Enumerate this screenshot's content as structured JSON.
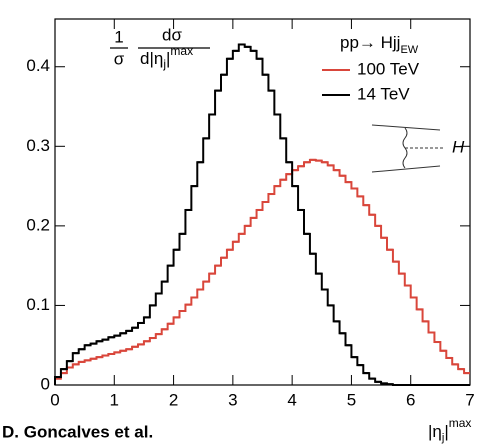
{
  "chart_data": {
    "type": "histogram",
    "author": "D. Goncalves et al.",
    "ylabel_parts": [
      "1",
      "σ",
      "dσ",
      "d|η",
      "j",
      "|",
      "max"
    ],
    "xlabel_parts": [
      "|η",
      "j",
      "|",
      "max"
    ],
    "legend_title_parts": [
      "pp→ Hjj",
      "EW"
    ],
    "diagram_label": "H",
    "xlim": [
      0,
      7
    ],
    "ylim": [
      0,
      0.46
    ],
    "xticks": [
      0,
      1,
      2,
      3,
      4,
      5,
      6,
      7
    ],
    "yticks": [
      0,
      0.1,
      0.2,
      0.3,
      0.4
    ],
    "grid": false,
    "bins": [
      0,
      0.1,
      0.2,
      0.3,
      0.4,
      0.5,
      0.6,
      0.7,
      0.8,
      0.9,
      1,
      1.1,
      1.2,
      1.3,
      1.4,
      1.5,
      1.6,
      1.7,
      1.8,
      1.9,
      2,
      2.1,
      2.2,
      2.3,
      2.4,
      2.5,
      2.6,
      2.7,
      2.8,
      2.9,
      3,
      3.1,
      3.2,
      3.3,
      3.4,
      3.5,
      3.6,
      3.7,
      3.8,
      3.9,
      4,
      4.1,
      4.2,
      4.3,
      4.4,
      4.5,
      4.6,
      4.7,
      4.8,
      4.9,
      5,
      5.1,
      5.2,
      5.3,
      5.4,
      5.5,
      5.6,
      5.7,
      5.8,
      5.9,
      6,
      6.1,
      6.2,
      6.3,
      6.4,
      6.5,
      6.6,
      6.7,
      6.8,
      6.9,
      7
    ],
    "series": [
      {
        "name": "100 TeV",
        "color": "#d9463b",
        "values": [
          0.008,
          0.015,
          0.022,
          0.026,
          0.029,
          0.031,
          0.033,
          0.035,
          0.037,
          0.039,
          0.041,
          0.043,
          0.045,
          0.048,
          0.051,
          0.055,
          0.059,
          0.064,
          0.07,
          0.077,
          0.085,
          0.093,
          0.101,
          0.11,
          0.12,
          0.13,
          0.14,
          0.15,
          0.16,
          0.17,
          0.18,
          0.19,
          0.2,
          0.21,
          0.22,
          0.23,
          0.24,
          0.25,
          0.258,
          0.265,
          0.27,
          0.275,
          0.28,
          0.283,
          0.282,
          0.28,
          0.276,
          0.27,
          0.263,
          0.255,
          0.247,
          0.237,
          0.226,
          0.214,
          0.2,
          0.185,
          0.17,
          0.155,
          0.14,
          0.125,
          0.11,
          0.095,
          0.08,
          0.066,
          0.054,
          0.043,
          0.034,
          0.026,
          0.02,
          0.015
        ]
      },
      {
        "name": "14 TeV",
        "color": "#000000",
        "values": [
          0.01,
          0.02,
          0.03,
          0.04,
          0.045,
          0.05,
          0.052,
          0.055,
          0.057,
          0.06,
          0.062,
          0.065,
          0.068,
          0.072,
          0.078,
          0.085,
          0.1,
          0.115,
          0.13,
          0.15,
          0.17,
          0.19,
          0.22,
          0.25,
          0.28,
          0.31,
          0.34,
          0.37,
          0.39,
          0.41,
          0.42,
          0.428,
          0.425,
          0.42,
          0.41,
          0.39,
          0.37,
          0.34,
          0.31,
          0.28,
          0.25,
          0.22,
          0.19,
          0.165,
          0.14,
          0.12,
          0.1,
          0.08,
          0.065,
          0.05,
          0.035,
          0.025,
          0.015,
          0.008,
          0.004,
          0.002,
          0.001,
          0,
          0,
          0,
          0,
          0,
          0,
          0,
          0,
          0,
          0,
          0,
          0,
          0
        ]
      }
    ]
  }
}
